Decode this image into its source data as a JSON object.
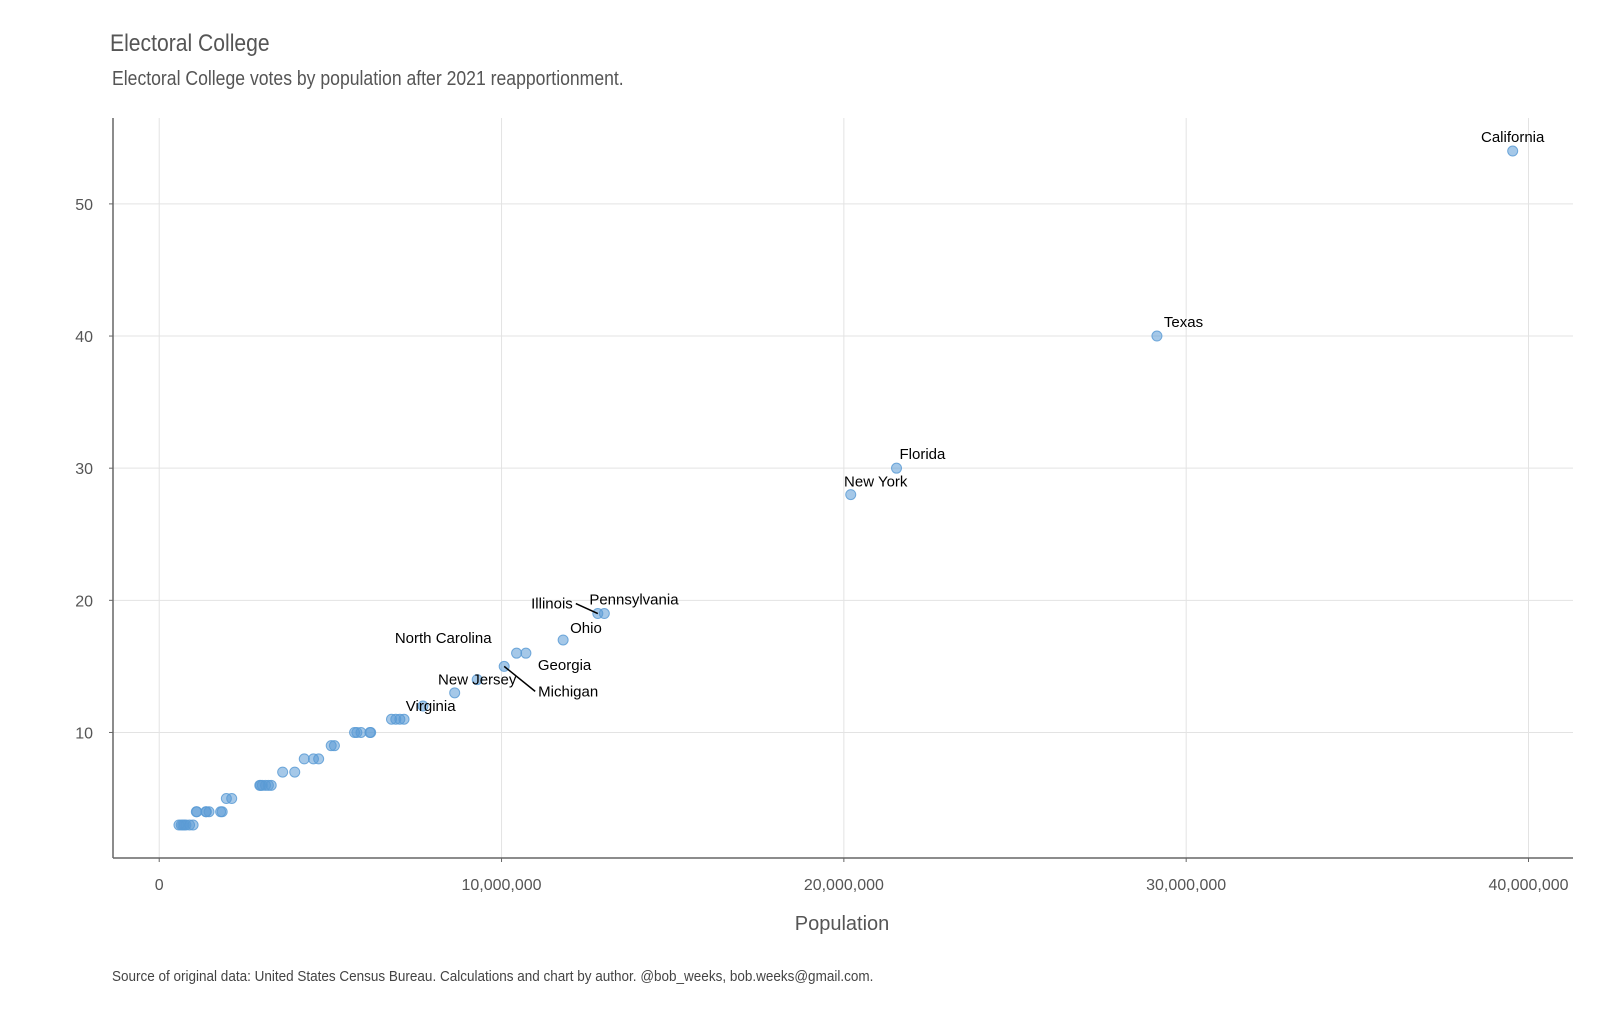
{
  "chart_data": {
    "type": "scatter",
    "title": "Electoral College",
    "subtitle": "Electoral College votes by population after 2021 reapportionment.",
    "xlabel": "Population",
    "ylabel": "",
    "caption": "Source of original data: United States Census Bureau. Calculations and chart by author. @bob_weeks, bob.weeks@gmail.com.",
    "xlim": [
      -1350000,
      41300000
    ],
    "ylim": [
      0.5,
      56.5
    ],
    "x_ticks": [
      0,
      10000000,
      20000000,
      30000000,
      40000000
    ],
    "x_tick_labels": [
      "0",
      "10,000,000",
      "20,000,000",
      "30,000,000",
      "40,000,000"
    ],
    "y_ticks": [
      10,
      20,
      30,
      40,
      50
    ],
    "y_tick_labels": [
      "10",
      "20",
      "30",
      "40",
      "50"
    ],
    "grid": true,
    "point_color": "#5b9bd5",
    "points": [
      {
        "x": 39538223,
        "y": 54,
        "label": "California"
      },
      {
        "x": 29145505,
        "y": 40,
        "label": "Texas"
      },
      {
        "x": 21538187,
        "y": 30,
        "label": "Florida"
      },
      {
        "x": 20201249,
        "y": 28,
        "label": "New York"
      },
      {
        "x": 13002700,
        "y": 19,
        "label": "Pennsylvania"
      },
      {
        "x": 12812508,
        "y": 19,
        "label": "Illinois"
      },
      {
        "x": 11799448,
        "y": 17,
        "label": "Ohio"
      },
      {
        "x": 10711908,
        "y": 16,
        "label": "Georgia"
      },
      {
        "x": 10439388,
        "y": 16,
        "label": "North Carolina"
      },
      {
        "x": 10077331,
        "y": 15,
        "label": "Michigan"
      },
      {
        "x": 9288994,
        "y": 14,
        "label": "New Jersey"
      },
      {
        "x": 8631393,
        "y": 13,
        "label": "Virginia"
      },
      {
        "x": 7705281,
        "y": 12
      },
      {
        "x": 7151502,
        "y": 11
      },
      {
        "x": 7029917,
        "y": 11
      },
      {
        "x": 6910840,
        "y": 11
      },
      {
        "x": 6785528,
        "y": 11
      },
      {
        "x": 6177224,
        "y": 10
      },
      {
        "x": 6154913,
        "y": 10
      },
      {
        "x": 5893718,
        "y": 10
      },
      {
        "x": 5773714,
        "y": 10
      },
      {
        "x": 5706494,
        "y": 10
      },
      {
        "x": 5118425,
        "y": 9
      },
      {
        "x": 5024279,
        "y": 9
      },
      {
        "x": 4657757,
        "y": 8
      },
      {
        "x": 4505836,
        "y": 8
      },
      {
        "x": 4237256,
        "y": 8
      },
      {
        "x": 3959353,
        "y": 7
      },
      {
        "x": 3605944,
        "y": 7
      },
      {
        "x": 3271616,
        "y": 6
      },
      {
        "x": 3190369,
        "y": 6
      },
      {
        "x": 3104614,
        "y": 6
      },
      {
        "x": 3011524,
        "y": 6
      },
      {
        "x": 2961279,
        "y": 6
      },
      {
        "x": 2937880,
        "y": 6
      },
      {
        "x": 2117522,
        "y": 5
      },
      {
        "x": 1961504,
        "y": 5
      },
      {
        "x": 1839106,
        "y": 4
      },
      {
        "x": 1793716,
        "y": 4
      },
      {
        "x": 1455271,
        "y": 4
      },
      {
        "x": 1377529,
        "y": 4
      },
      {
        "x": 1362359,
        "y": 4
      },
      {
        "x": 1097379,
        "y": 4
      },
      {
        "x": 1084225,
        "y": 4
      },
      {
        "x": 989948,
        "y": 3
      },
      {
        "x": 886667,
        "y": 3
      },
      {
        "x": 779094,
        "y": 3
      },
      {
        "x": 733391,
        "y": 3
      },
      {
        "x": 689545,
        "y": 3
      },
      {
        "x": 643077,
        "y": 3
      },
      {
        "x": 576851,
        "y": 3
      }
    ]
  }
}
